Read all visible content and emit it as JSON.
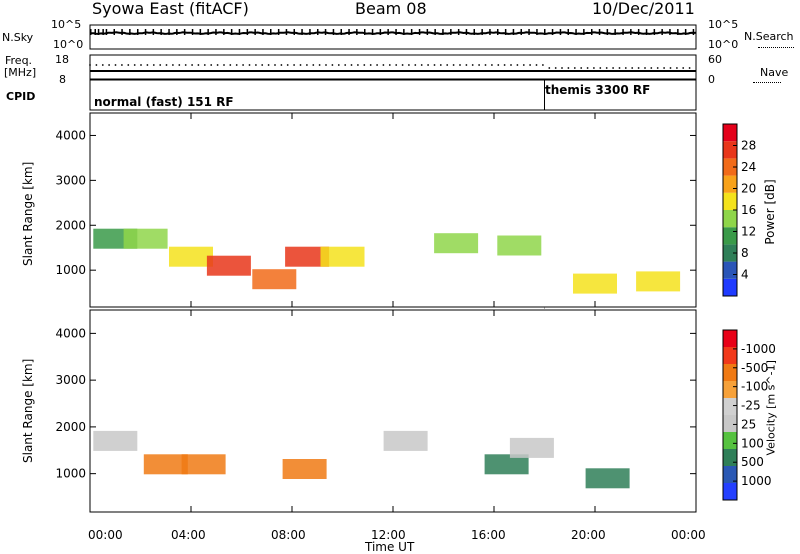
{
  "header": {
    "station": "Syowa East (fitACF)",
    "beam": "Beam 08",
    "date": "10/Dec/2011"
  },
  "top_panels": {
    "noise": {
      "left_label": "N.Sky",
      "right_label": "N.Search",
      "left_ticks": [
        "10^5",
        "10^0"
      ],
      "right_ticks": [
        "10^5",
        "10^0"
      ]
    },
    "freq": {
      "left_label_1": "Freq.",
      "left_label_2": "[MHz]",
      "left_ticks": [
        "18",
        "8"
      ],
      "right_label": "Nave",
      "right_ticks": [
        "60",
        "0"
      ]
    },
    "cpid": {
      "label": "CPID",
      "modes": [
        "normal (fast) 151 RF",
        "themis 3300 RF"
      ]
    }
  },
  "colors": {
    "power_scale": [
      "#1f3bff",
      "#2a55b8",
      "#2f7f58",
      "#3a9a49",
      "#8fd64a",
      "#f4e21c",
      "#f8a21a",
      "#f16b19",
      "#e8361a",
      "#e4001a"
    ],
    "velocity_scale": [
      "#2440ff",
      "#2a58b4",
      "#2f7f58",
      "#56c240",
      "#c8c8c8",
      "#d0d0d0",
      "#f6a13a",
      "#f07a14",
      "#f1391a",
      "#e80017"
    ]
  },
  "chart_data": [
    {
      "type": "heatmap",
      "name_in_figure": "Power",
      "ylabel": "Slant Range [km]",
      "xlabel": "",
      "yticks": [
        1000,
        2000,
        3000,
        4000
      ],
      "ylim": [
        180,
        4500
      ],
      "colorbar_label": "Power [dB]",
      "colorbar_ticks": [
        "4",
        "8",
        "12",
        "16",
        "20",
        "24",
        "28"
      ],
      "colorbar_range": [
        0,
        30
      ],
      "xlim": [
        0,
        24
      ],
      "summary_values": [
        {
          "time_h": 1.0,
          "range_km": 1700,
          "power_db": 10
        },
        {
          "time_h": 2.2,
          "range_km": 1700,
          "power_db": 14
        },
        {
          "time_h": 4.0,
          "range_km": 1300,
          "power_db": 18
        },
        {
          "time_h": 5.5,
          "range_km": 1100,
          "power_db": 28
        },
        {
          "time_h": 7.3,
          "range_km": 800,
          "power_db": 24
        },
        {
          "time_h": 8.6,
          "range_km": 1300,
          "power_db": 26
        },
        {
          "time_h": 10.0,
          "range_km": 1300,
          "power_db": 18
        },
        {
          "time_h": 14.5,
          "range_km": 1600,
          "power_db": 12
        },
        {
          "time_h": 17.0,
          "range_km": 1550,
          "power_db": 14
        },
        {
          "time_h": 20.0,
          "range_km": 700,
          "power_db": 16
        },
        {
          "time_h": 22.5,
          "range_km": 750,
          "power_db": 18
        }
      ]
    },
    {
      "type": "heatmap",
      "name_in_figure": "Velocity",
      "ylabel": "Slant Range [km]",
      "xlabel": "Time UT",
      "xticks": [
        "00:00",
        "04:00",
        "08:00",
        "12:00",
        "16:00",
        "20:00",
        "00:00"
      ],
      "yticks": [
        1000,
        2000,
        3000,
        4000
      ],
      "ylim": [
        180,
        4500
      ],
      "colorbar_label": "Velocity [m s^-1]",
      "colorbar_ticks": [
        "1000",
        "500",
        "100",
        "25",
        "-25",
        "-100",
        "-500",
        "-1000"
      ],
      "xlim": [
        0,
        24
      ],
      "summary_values": [
        {
          "time_h": 1.0,
          "range_km": 1700,
          "velocity_ms": -25
        },
        {
          "time_h": 3.0,
          "range_km": 1200,
          "velocity_ms": -300
        },
        {
          "time_h": 4.5,
          "range_km": 1200,
          "velocity_ms": -200
        },
        {
          "time_h": 8.5,
          "range_km": 1100,
          "velocity_ms": -300
        },
        {
          "time_h": 12.5,
          "range_km": 1700,
          "velocity_ms": 0
        },
        {
          "time_h": 16.5,
          "range_km": 1200,
          "velocity_ms": 300
        },
        {
          "time_h": 17.5,
          "range_km": 1550,
          "velocity_ms": 0
        },
        {
          "time_h": 20.5,
          "range_km": 900,
          "velocity_ms": 200
        }
      ]
    }
  ],
  "mode_change_time_h": 18.0
}
